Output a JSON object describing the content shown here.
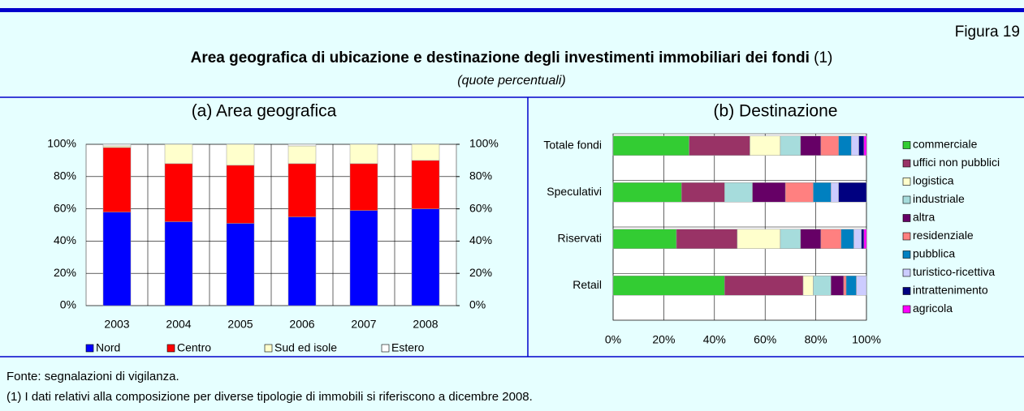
{
  "header": {
    "figure": "Figura 19",
    "title": "Area geografica di ubicazione e destinazione degli investimenti immobiliari dei fondi",
    "title_note": "(1)",
    "subtitle": "(quote percentuali)"
  },
  "chart_data": [
    {
      "type": "bar",
      "stacked": true,
      "title": "(a) Area geografica",
      "categories": [
        "2003",
        "2004",
        "2005",
        "2006",
        "2007",
        "2008"
      ],
      "series": [
        {
          "name": "Nord",
          "color": "#0000ff",
          "values": [
            58,
            52,
            51,
            55,
            59,
            60
          ]
        },
        {
          "name": "Centro",
          "color": "#ff0000",
          "values": [
            40,
            36,
            36,
            33,
            29,
            30
          ]
        },
        {
          "name": "Sud ed isole",
          "color": "#ffffcc",
          "values": [
            1,
            12,
            13,
            11,
            12,
            10
          ]
        },
        {
          "name": "Estero",
          "color": "#ffffff",
          "values": [
            1,
            0,
            0,
            1,
            0,
            0
          ]
        }
      ],
      "ylim": [
        0,
        100
      ],
      "yticks": [
        {
          "value": 0,
          "label": "0%"
        },
        {
          "value": 20,
          "label": "20%"
        },
        {
          "value": 40,
          "label": "40%"
        },
        {
          "value": 60,
          "label": "60%"
        },
        {
          "value": 80,
          "label": "80%"
        },
        {
          "value": 100,
          "label": "100%"
        }
      ],
      "y2lim": [
        0,
        100
      ],
      "y2ticks": [
        {
          "value": 0,
          "label": "0%"
        },
        {
          "value": 20,
          "label": "20%"
        },
        {
          "value": 40,
          "label": "40%"
        },
        {
          "value": 60,
          "label": "60%"
        },
        {
          "value": 80,
          "label": "80%"
        },
        {
          "value": 100,
          "label": "100%"
        }
      ],
      "grid": true,
      "legend": "bottom"
    },
    {
      "type": "barh",
      "stacked": true,
      "title": "(b) Destinazione",
      "categories": [
        "Totale fondi",
        "Speculativi",
        "Riservati",
        "Retail"
      ],
      "series": [
        {
          "name": "commerciale",
          "color": "#33cc33",
          "values": [
            30,
            27,
            25,
            44
          ]
        },
        {
          "name": "uffici non pubblici",
          "color": "#993366",
          "values": [
            24,
            17,
            24,
            31
          ]
        },
        {
          "name": "logistica",
          "color": "#ffffcc",
          "values": [
            12,
            0,
            17,
            4
          ]
        },
        {
          "name": "industriale",
          "color": "#a6dcdc",
          "values": [
            8,
            11,
            8,
            7
          ]
        },
        {
          "name": "altra",
          "color": "#660066",
          "values": [
            8,
            13,
            8,
            5
          ]
        },
        {
          "name": "residenziale",
          "color": "#ff8080",
          "values": [
            7,
            11,
            8,
            1
          ]
        },
        {
          "name": "pubblica",
          "color": "#0080c0",
          "values": [
            5,
            7,
            5,
            4
          ]
        },
        {
          "name": "turistico-ricettiva",
          "color": "#ccccff",
          "values": [
            3,
            3,
            3,
            4
          ]
        },
        {
          "name": "intrattenimento",
          "color": "#000080",
          "values": [
            2,
            11,
            1,
            0
          ]
        },
        {
          "name": "agricola",
          "color": "#ff00ff",
          "values": [
            1,
            0,
            1,
            0
          ]
        }
      ],
      "xlim": [
        0,
        100
      ],
      "xticks": [
        {
          "value": 0,
          "label": "0%"
        },
        {
          "value": 20,
          "label": "20%"
        },
        {
          "value": 40,
          "label": "40%"
        },
        {
          "value": 60,
          "label": "60%"
        },
        {
          "value": 80,
          "label": "80%"
        },
        {
          "value": 100,
          "label": "100%"
        }
      ],
      "grid": true,
      "legend": "right"
    }
  ],
  "footnotes": [
    "Fonte: segnalazioni di vigilanza.",
    "(1) I dati relativi alla composizione per diverse tipologie di immobili si riferiscono a dicembre 2008."
  ]
}
